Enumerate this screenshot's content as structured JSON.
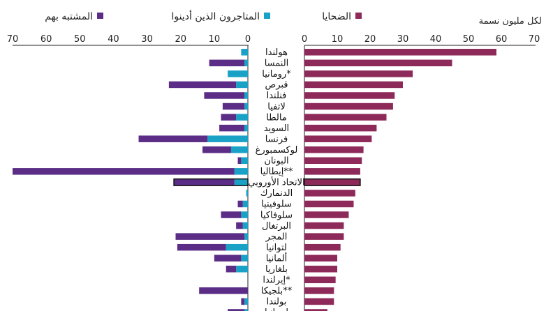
{
  "chart_data": {
    "type": "bar",
    "unit_label": "لكل مليون نسمة",
    "legend": {
      "victims": {
        "label": "الضحايا",
        "color": "#8e2a5a"
      },
      "convicted": {
        "label": "المتاجرون الذين أدينوا",
        "color": "#1aa1c6"
      },
      "suspected": {
        "label": "المشتبه بهم",
        "color": "#5b2d86"
      }
    },
    "right_axis": {
      "ticks": [
        0,
        10,
        20,
        30,
        40,
        50,
        60,
        70
      ],
      "range": [
        0,
        70
      ]
    },
    "left_axis": {
      "ticks": [
        70,
        60,
        50,
        40,
        30,
        20,
        10,
        0
      ],
      "range": [
        0,
        70
      ]
    },
    "highlight_category": "الاتحاد الأوروبي",
    "categories": [
      "هولندا",
      "النمسا",
      "رومانيا*",
      "قبرص",
      "فنلندا",
      "لاتفيا",
      "مالطا",
      "السويد",
      "فرنسا",
      "لوكسمبورغ",
      "اليونان",
      "إيطاليا**",
      "الاتحاد الأوروبي",
      "الدنمارك",
      "سلوفينيا",
      "سلوفاكيا",
      "البرتغال",
      "المجر",
      "لتوانيا",
      "ألمانيا",
      "بلغاريا",
      "إيرلندا*",
      "بلجيكا**",
      "بولندا",
      "إسبانيا"
    ],
    "series": [
      {
        "name": "الضحايا",
        "values": [
          58.5,
          45,
          33,
          30,
          27.5,
          27,
          25,
          22,
          20.5,
          18,
          17.5,
          17,
          17,
          15.5,
          15,
          13.5,
          12,
          12,
          11,
          10,
          10,
          9.5,
          9,
          9,
          7
        ]
      },
      {
        "name": "المتاجرون الذين أدينوا",
        "values": [
          2,
          1,
          6,
          3.5,
          1,
          1,
          3.5,
          1,
          12,
          5,
          2,
          4,
          4,
          0.5,
          1.5,
          2,
          1.5,
          1,
          6.5,
          2,
          3.5,
          0,
          0,
          1,
          1
        ]
      },
      {
        "name": "المشتبه بهم",
        "values": [
          0,
          10.5,
          0,
          20,
          12,
          6.5,
          4.5,
          7.5,
          20.5,
          8.5,
          1,
          66,
          18,
          0,
          1.5,
          6,
          2,
          20.5,
          14.5,
          8,
          3,
          0,
          14.5,
          1,
          5
        ]
      }
    ]
  }
}
